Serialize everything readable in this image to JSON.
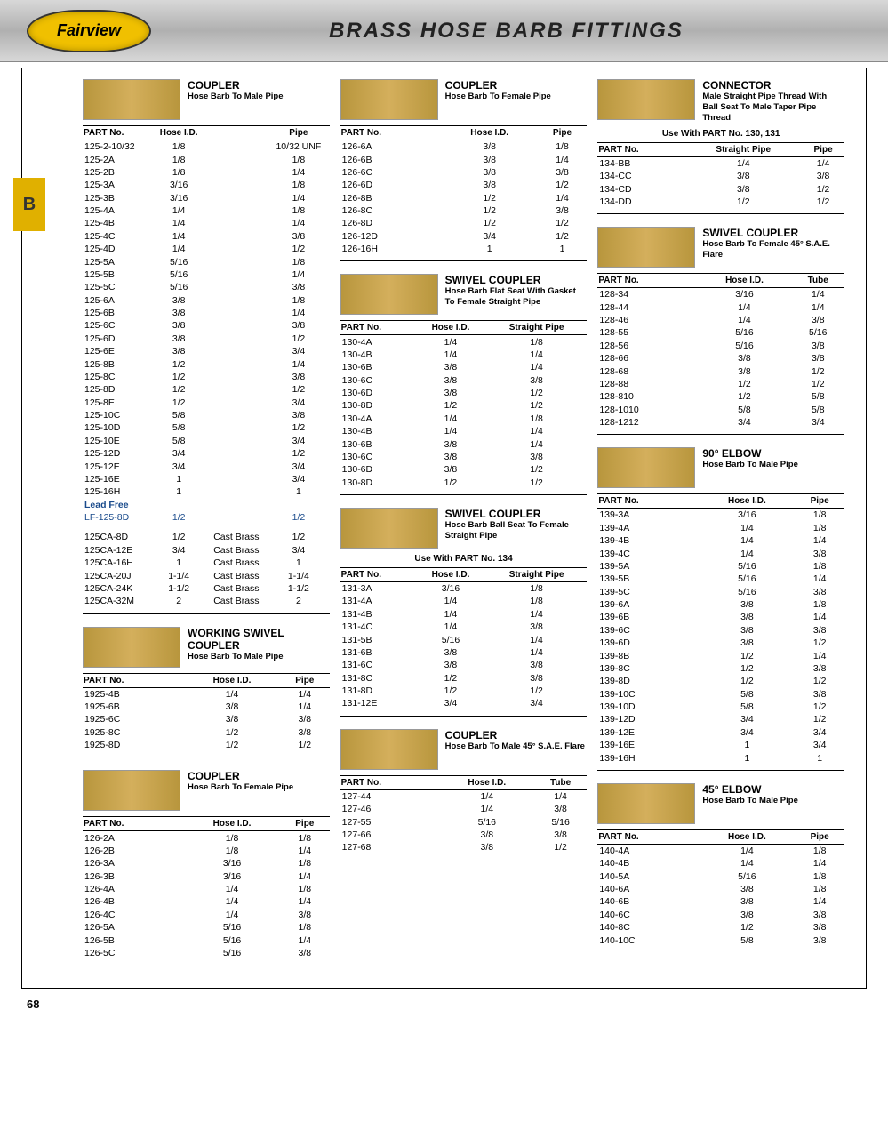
{
  "logo": "Fairview",
  "title": "BRASS HOSE BARB FITTINGS",
  "sidetab": "B",
  "pagenum": "68",
  "sections": {
    "s125": {
      "big": "COUPLER",
      "sub": "Hose Barb To Male  Pipe",
      "h": [
        "PART No.",
        "Hose I.D.",
        "",
        "Pipe"
      ],
      "rows": [
        [
          "125-2-10/32",
          "1/8",
          "",
          "10/32 UNF"
        ],
        [
          "125-2A",
          "1/8",
          "",
          "1/8"
        ],
        [
          "125-2B",
          "1/8",
          "",
          "1/4"
        ],
        [
          "125-3A",
          "3/16",
          "",
          "1/8"
        ],
        [
          "125-3B",
          "3/16",
          "",
          "1/4"
        ],
        [
          "125-4A",
          "1/4",
          "",
          "1/8"
        ],
        [
          "125-4B",
          "1/4",
          "",
          "1/4"
        ],
        [
          "125-4C",
          "1/4",
          "",
          "3/8"
        ],
        [
          "125-4D",
          "1/4",
          "",
          "1/2"
        ],
        [
          "125-5A",
          "5/16",
          "",
          "1/8"
        ],
        [
          "125-5B",
          "5/16",
          "",
          "1/4"
        ],
        [
          "125-5C",
          "5/16",
          "",
          "3/8"
        ],
        [
          "125-6A",
          "3/8",
          "",
          "1/8"
        ],
        [
          "125-6B",
          "3/8",
          "",
          "1/4"
        ],
        [
          "125-6C",
          "3/8",
          "",
          "3/8"
        ],
        [
          "125-6D",
          "3/8",
          "",
          "1/2"
        ],
        [
          "125-6E",
          "3/8",
          "",
          "3/4"
        ],
        [
          "125-8B",
          "1/2",
          "",
          "1/4"
        ],
        [
          "125-8C",
          "1/2",
          "",
          "3/8"
        ],
        [
          "125-8D",
          "1/2",
          "",
          "1/2"
        ],
        [
          "125-8E",
          "1/2",
          "",
          "3/4"
        ],
        [
          "125-10C",
          "5/8",
          "",
          "3/8"
        ],
        [
          "125-10D",
          "5/8",
          "",
          "1/2"
        ],
        [
          "125-10E",
          "5/8",
          "",
          "3/4"
        ],
        [
          "125-12D",
          "3/4",
          "",
          "1/2"
        ],
        [
          "125-12E",
          "3/4",
          "",
          "3/4"
        ],
        [
          "125-16E",
          "1",
          "",
          "3/4"
        ],
        [
          "125-16H",
          "1",
          "",
          "1"
        ]
      ],
      "lf_title": "Lead Free",
      "lf_rows": [
        [
          "LF-125-8D",
          "1/2",
          "",
          "1/2"
        ]
      ],
      "ca_rows": [
        [
          "125CA-8D",
          "1/2",
          "Cast Brass",
          "1/2"
        ],
        [
          "125CA-12E",
          "3/4",
          "Cast Brass",
          "3/4"
        ],
        [
          "125CA-16H",
          "1",
          "Cast Brass",
          "1"
        ],
        [
          "125CA-20J",
          "1-1/4",
          "Cast Brass",
          "1-1/4"
        ],
        [
          "125CA-24K",
          "1-1/2",
          "Cast Brass",
          "1-1/2"
        ],
        [
          "125CA-32M",
          "2",
          "Cast Brass",
          "2"
        ]
      ]
    },
    "s1925": {
      "big": "WORKING SWIVEL COUPLER",
      "sub": "Hose Barb To Male  Pipe",
      "h": [
        "PART No.",
        "Hose I.D.",
        "Pipe"
      ],
      "rows": [
        [
          "1925-4B",
          "1/4",
          "1/4"
        ],
        [
          "1925-6B",
          "3/8",
          "1/4"
        ],
        [
          "1925-6C",
          "3/8",
          "3/8"
        ],
        [
          "1925-8C",
          "1/2",
          "3/8"
        ],
        [
          "1925-8D",
          "1/2",
          "1/2"
        ]
      ]
    },
    "s126a": {
      "big": "COUPLER",
      "sub": "Hose Barb To Female  Pipe",
      "h": [
        "PART No.",
        "Hose I.D.",
        "Pipe"
      ],
      "rows": [
        [
          "126-2A",
          "1/8",
          "1/8"
        ],
        [
          "126-2B",
          "1/8",
          "1/4"
        ],
        [
          "126-3A",
          "3/16",
          "1/8"
        ],
        [
          "126-3B",
          "3/16",
          "1/4"
        ],
        [
          "126-4A",
          "1/4",
          "1/8"
        ],
        [
          "126-4B",
          "1/4",
          "1/4"
        ],
        [
          "126-4C",
          "1/4",
          "3/8"
        ],
        [
          "126-5A",
          "5/16",
          "1/8"
        ],
        [
          "126-5B",
          "5/16",
          "1/4"
        ],
        [
          "126-5C",
          "5/16",
          "3/8"
        ]
      ]
    },
    "s126b": {
      "big": "COUPLER",
      "sub": "Hose Barb To Female  Pipe",
      "h": [
        "PART No.",
        "Hose I.D.",
        "Pipe"
      ],
      "rows": [
        [
          "126-6A",
          "3/8",
          "1/8"
        ],
        [
          "126-6B",
          "3/8",
          "1/4"
        ],
        [
          "126-6C",
          "3/8",
          "3/8"
        ],
        [
          "126-6D",
          "3/8",
          "1/2"
        ],
        [
          "126-8B",
          "1/2",
          "1/4"
        ],
        [
          "126-8C",
          "1/2",
          "3/8"
        ],
        [
          "126-8D",
          "1/2",
          "1/2"
        ],
        [
          "126-12D",
          "3/4",
          "1/2"
        ],
        [
          "126-16H",
          "1",
          "1"
        ]
      ]
    },
    "s130": {
      "big": "SWIVEL COUPLER",
      "sub": "Hose Barb Flat Seat With Gasket To Female Straight Pipe",
      "h": [
        "PART No.",
        "Hose I.D.",
        "Straight Pipe"
      ],
      "rows": [
        [
          "130-4A",
          "1/4",
          "1/8"
        ],
        [
          "130-4B",
          "1/4",
          "1/4"
        ],
        [
          "130-6B",
          "3/8",
          "1/4"
        ],
        [
          "130-6C",
          "3/8",
          "3/8"
        ],
        [
          "130-6D",
          "3/8",
          "1/2"
        ],
        [
          "130-8D",
          "1/2",
          "1/2"
        ],
        [
          "130-4A",
          "1/4",
          "1/8"
        ],
        [
          "130-4B",
          "1/4",
          "1/4"
        ],
        [
          "130-6B",
          "3/8",
          "1/4"
        ],
        [
          "130-6C",
          "3/8",
          "3/8"
        ],
        [
          "130-6D",
          "3/8",
          "1/2"
        ],
        [
          "130-8D",
          "1/2",
          "1/2"
        ]
      ]
    },
    "s131": {
      "big": "SWIVEL COUPLER",
      "sub": "Hose Barb Ball Seat To Female Straight Pipe",
      "note": "Use With PART No. 134",
      "h": [
        "PART No.",
        "Hose I.D.",
        "Straight Pipe"
      ],
      "rows": [
        [
          "131-3A",
          "3/16",
          "1/8"
        ],
        [
          "131-4A",
          "1/4",
          "1/8"
        ],
        [
          "131-4B",
          "1/4",
          "1/4"
        ],
        [
          "131-4C",
          "1/4",
          "3/8"
        ],
        [
          "131-5B",
          "5/16",
          "1/4"
        ],
        [
          "131-6B",
          "3/8",
          "1/4"
        ],
        [
          "131-6C",
          "3/8",
          "3/8"
        ],
        [
          "131-8C",
          "1/2",
          "3/8"
        ],
        [
          "131-8D",
          "1/2",
          "1/2"
        ],
        [
          "131-12E",
          "3/4",
          "3/4"
        ]
      ]
    },
    "s127": {
      "big": "COUPLER",
      "sub": "Hose Barb To Male 45° S.A.E. Flare",
      "h": [
        "PART No.",
        "Hose I.D.",
        "Tube"
      ],
      "rows": [
        [
          "127-44",
          "1/4",
          "1/4"
        ],
        [
          "127-46",
          "1/4",
          "3/8"
        ],
        [
          "127-55",
          "5/16",
          "5/16"
        ],
        [
          "127-66",
          "3/8",
          "3/8"
        ],
        [
          "127-68",
          "3/8",
          "1/2"
        ]
      ]
    },
    "s134": {
      "big": "CONNECTOR",
      "sub": "Male Straight Pipe Thread With Ball Seat To Male Taper Pipe Thread",
      "note": "Use With PART No. 130, 131",
      "h": [
        "PART No.",
        "Straight Pipe",
        "Pipe"
      ],
      "rows": [
        [
          "134-BB",
          "1/4",
          "1/4"
        ],
        [
          "134-CC",
          "3/8",
          "3/8"
        ],
        [
          "134-CD",
          "3/8",
          "1/2"
        ],
        [
          "134-DD",
          "1/2",
          "1/2"
        ]
      ]
    },
    "s128": {
      "big": "SWIVEL COUPLER",
      "sub": "Hose Barb To Female 45° S.A.E. Flare",
      "h": [
        "PART No.",
        "Hose I.D.",
        "Tube"
      ],
      "rows": [
        [
          "128-34",
          "3/16",
          "1/4"
        ],
        [
          "128-44",
          "1/4",
          "1/4"
        ],
        [
          "128-46",
          "1/4",
          "3/8"
        ],
        [
          "128-55",
          "5/16",
          "5/16"
        ],
        [
          "128-56",
          "5/16",
          "3/8"
        ],
        [
          "128-66",
          "3/8",
          "3/8"
        ],
        [
          "128-68",
          "3/8",
          "1/2"
        ],
        [
          "128-88",
          "1/2",
          "1/2"
        ],
        [
          "128-810",
          "1/2",
          "5/8"
        ],
        [
          "128-1010",
          "5/8",
          "5/8"
        ],
        [
          "128-1212",
          "3/4",
          "3/4"
        ]
      ]
    },
    "s139": {
      "big": "90° ELBOW",
      "sub": "Hose Barb To Male  Pipe",
      "h": [
        "PART No.",
        "Hose I.D.",
        "Pipe"
      ],
      "rows": [
        [
          "139-3A",
          "3/16",
          "1/8"
        ],
        [
          "139-4A",
          "1/4",
          "1/8"
        ],
        [
          "139-4B",
          "1/4",
          "1/4"
        ],
        [
          "139-4C",
          "1/4",
          "3/8"
        ],
        [
          "139-5A",
          "5/16",
          "1/8"
        ],
        [
          "139-5B",
          "5/16",
          "1/4"
        ],
        [
          "139-5C",
          "5/16",
          "3/8"
        ],
        [
          "139-6A",
          "3/8",
          "1/8"
        ],
        [
          "139-6B",
          "3/8",
          "1/4"
        ],
        [
          "139-6C",
          "3/8",
          "3/8"
        ],
        [
          "139-6D",
          "3/8",
          "1/2"
        ],
        [
          "139-8B",
          "1/2",
          "1/4"
        ],
        [
          "139-8C",
          "1/2",
          "3/8"
        ],
        [
          "139-8D",
          "1/2",
          "1/2"
        ],
        [
          "139-10C",
          "5/8",
          "3/8"
        ],
        [
          "139-10D",
          "5/8",
          "1/2"
        ],
        [
          "139-12D",
          "3/4",
          "1/2"
        ],
        [
          "139-12E",
          "3/4",
          "3/4"
        ],
        [
          "139-16E",
          "1",
          "3/4"
        ],
        [
          "139-16H",
          "1",
          "1"
        ]
      ]
    },
    "s140": {
      "big": "45° ELBOW",
      "sub": "Hose Barb To Male  Pipe",
      "h": [
        "PART No.",
        "Hose I.D.",
        "Pipe"
      ],
      "rows": [
        [
          "140-4A",
          "1/4",
          "1/8"
        ],
        [
          "140-4B",
          "1/4",
          "1/4"
        ],
        [
          "140-5A",
          "5/16",
          "1/8"
        ],
        [
          "140-6A",
          "3/8",
          "1/8"
        ],
        [
          "140-6B",
          "3/8",
          "1/4"
        ],
        [
          "140-6C",
          "3/8",
          "3/8"
        ],
        [
          "140-8C",
          "1/2",
          "3/8"
        ],
        [
          "140-10C",
          "5/8",
          "3/8"
        ]
      ]
    }
  }
}
